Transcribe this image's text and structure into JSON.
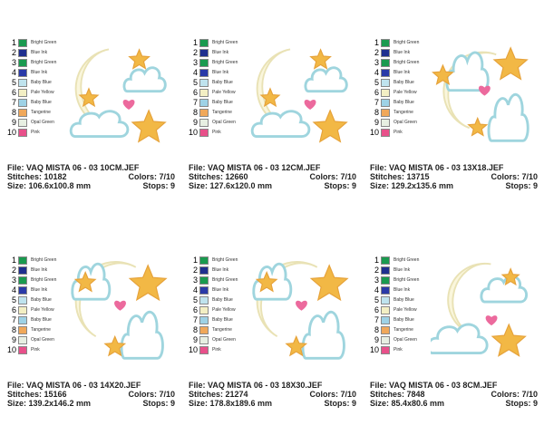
{
  "colors": {
    "1": "#1a9a4f",
    "2": "#1f2f8f",
    "3": "#1a9a4f",
    "4": "#2a3aa8",
    "5": "#bfe3ee",
    "6": "#f3efc4",
    "7": "#9ed2e6",
    "8": "#f0a85a",
    "9": "#e7efe2",
    "10": "#e8508a",
    "star": "#f2b845",
    "starEdge": "#e6a23a",
    "cloud": "#ffffff",
    "cloudEdge": "#9fd5de",
    "moon": "#faf6dc",
    "moonEdge": "#e9e2b5",
    "heart": "#ec6a9d"
  },
  "threads": [
    {
      "num": "1",
      "name": "Bright Green"
    },
    {
      "num": "2",
      "name": "Blue Ink"
    },
    {
      "num": "3",
      "name": "Bright Green"
    },
    {
      "num": "4",
      "name": "Blue Ink"
    },
    {
      "num": "5",
      "name": "Baby Blue"
    },
    {
      "num": "6",
      "name": "Pale Yellow"
    },
    {
      "num": "7",
      "name": "Baby Blue"
    },
    {
      "num": "8",
      "name": "Tangerine"
    },
    {
      "num": "9",
      "name": "Opal Green"
    },
    {
      "num": "10",
      "name": "Pink"
    }
  ],
  "panels": [
    {
      "file": "File: VAQ MISTA 06 - 03 10CM.JEF",
      "stitches": "Stitches: 10182",
      "colors": "Colors: 7/10",
      "size": "Size: 106.6x100.8 mm",
      "stops": "Stops: 9",
      "layout": "a"
    },
    {
      "file": "File: VAQ MISTA 06 - 03 12CM.JEF",
      "stitches": "Stitches: 12660",
      "colors": "Colors: 7/10",
      "size": "Size: 127.6x120.0 mm",
      "stops": "Stops: 9",
      "layout": "a"
    },
    {
      "file": "File: VAQ MISTA 06 - 03 13X18.JEF",
      "stitches": "Stitches: 13715",
      "colors": "Colors: 7/10",
      "size": "Size: 129.2x135.6 mm",
      "stops": "Stops: 9",
      "layout": "b"
    },
    {
      "file": "File: VAQ MISTA 06 - 03 14X20.JEF",
      "stitches": "Stitches: 15166",
      "colors": "Colors: 7/10",
      "size": "Size: 139.2x146.2 mm",
      "stops": "Stops: 9",
      "layout": "c"
    },
    {
      "file": "File: VAQ MISTA 06 - 03 18X30.JEF",
      "stitches": "Stitches: 21274",
      "colors": "Colors: 7/10",
      "size": "Size: 178.8x189.6 mm",
      "stops": "Stops: 9",
      "layout": "c"
    },
    {
      "file": "File: VAQ MISTA 06 - 03 8CM.JEF",
      "stitches": "Stitches: 7848",
      "colors": "Colors: 7/10",
      "size": "Size: 85.4x80.6 mm",
      "stops": "Stops: 9",
      "layout": "d"
    }
  ]
}
